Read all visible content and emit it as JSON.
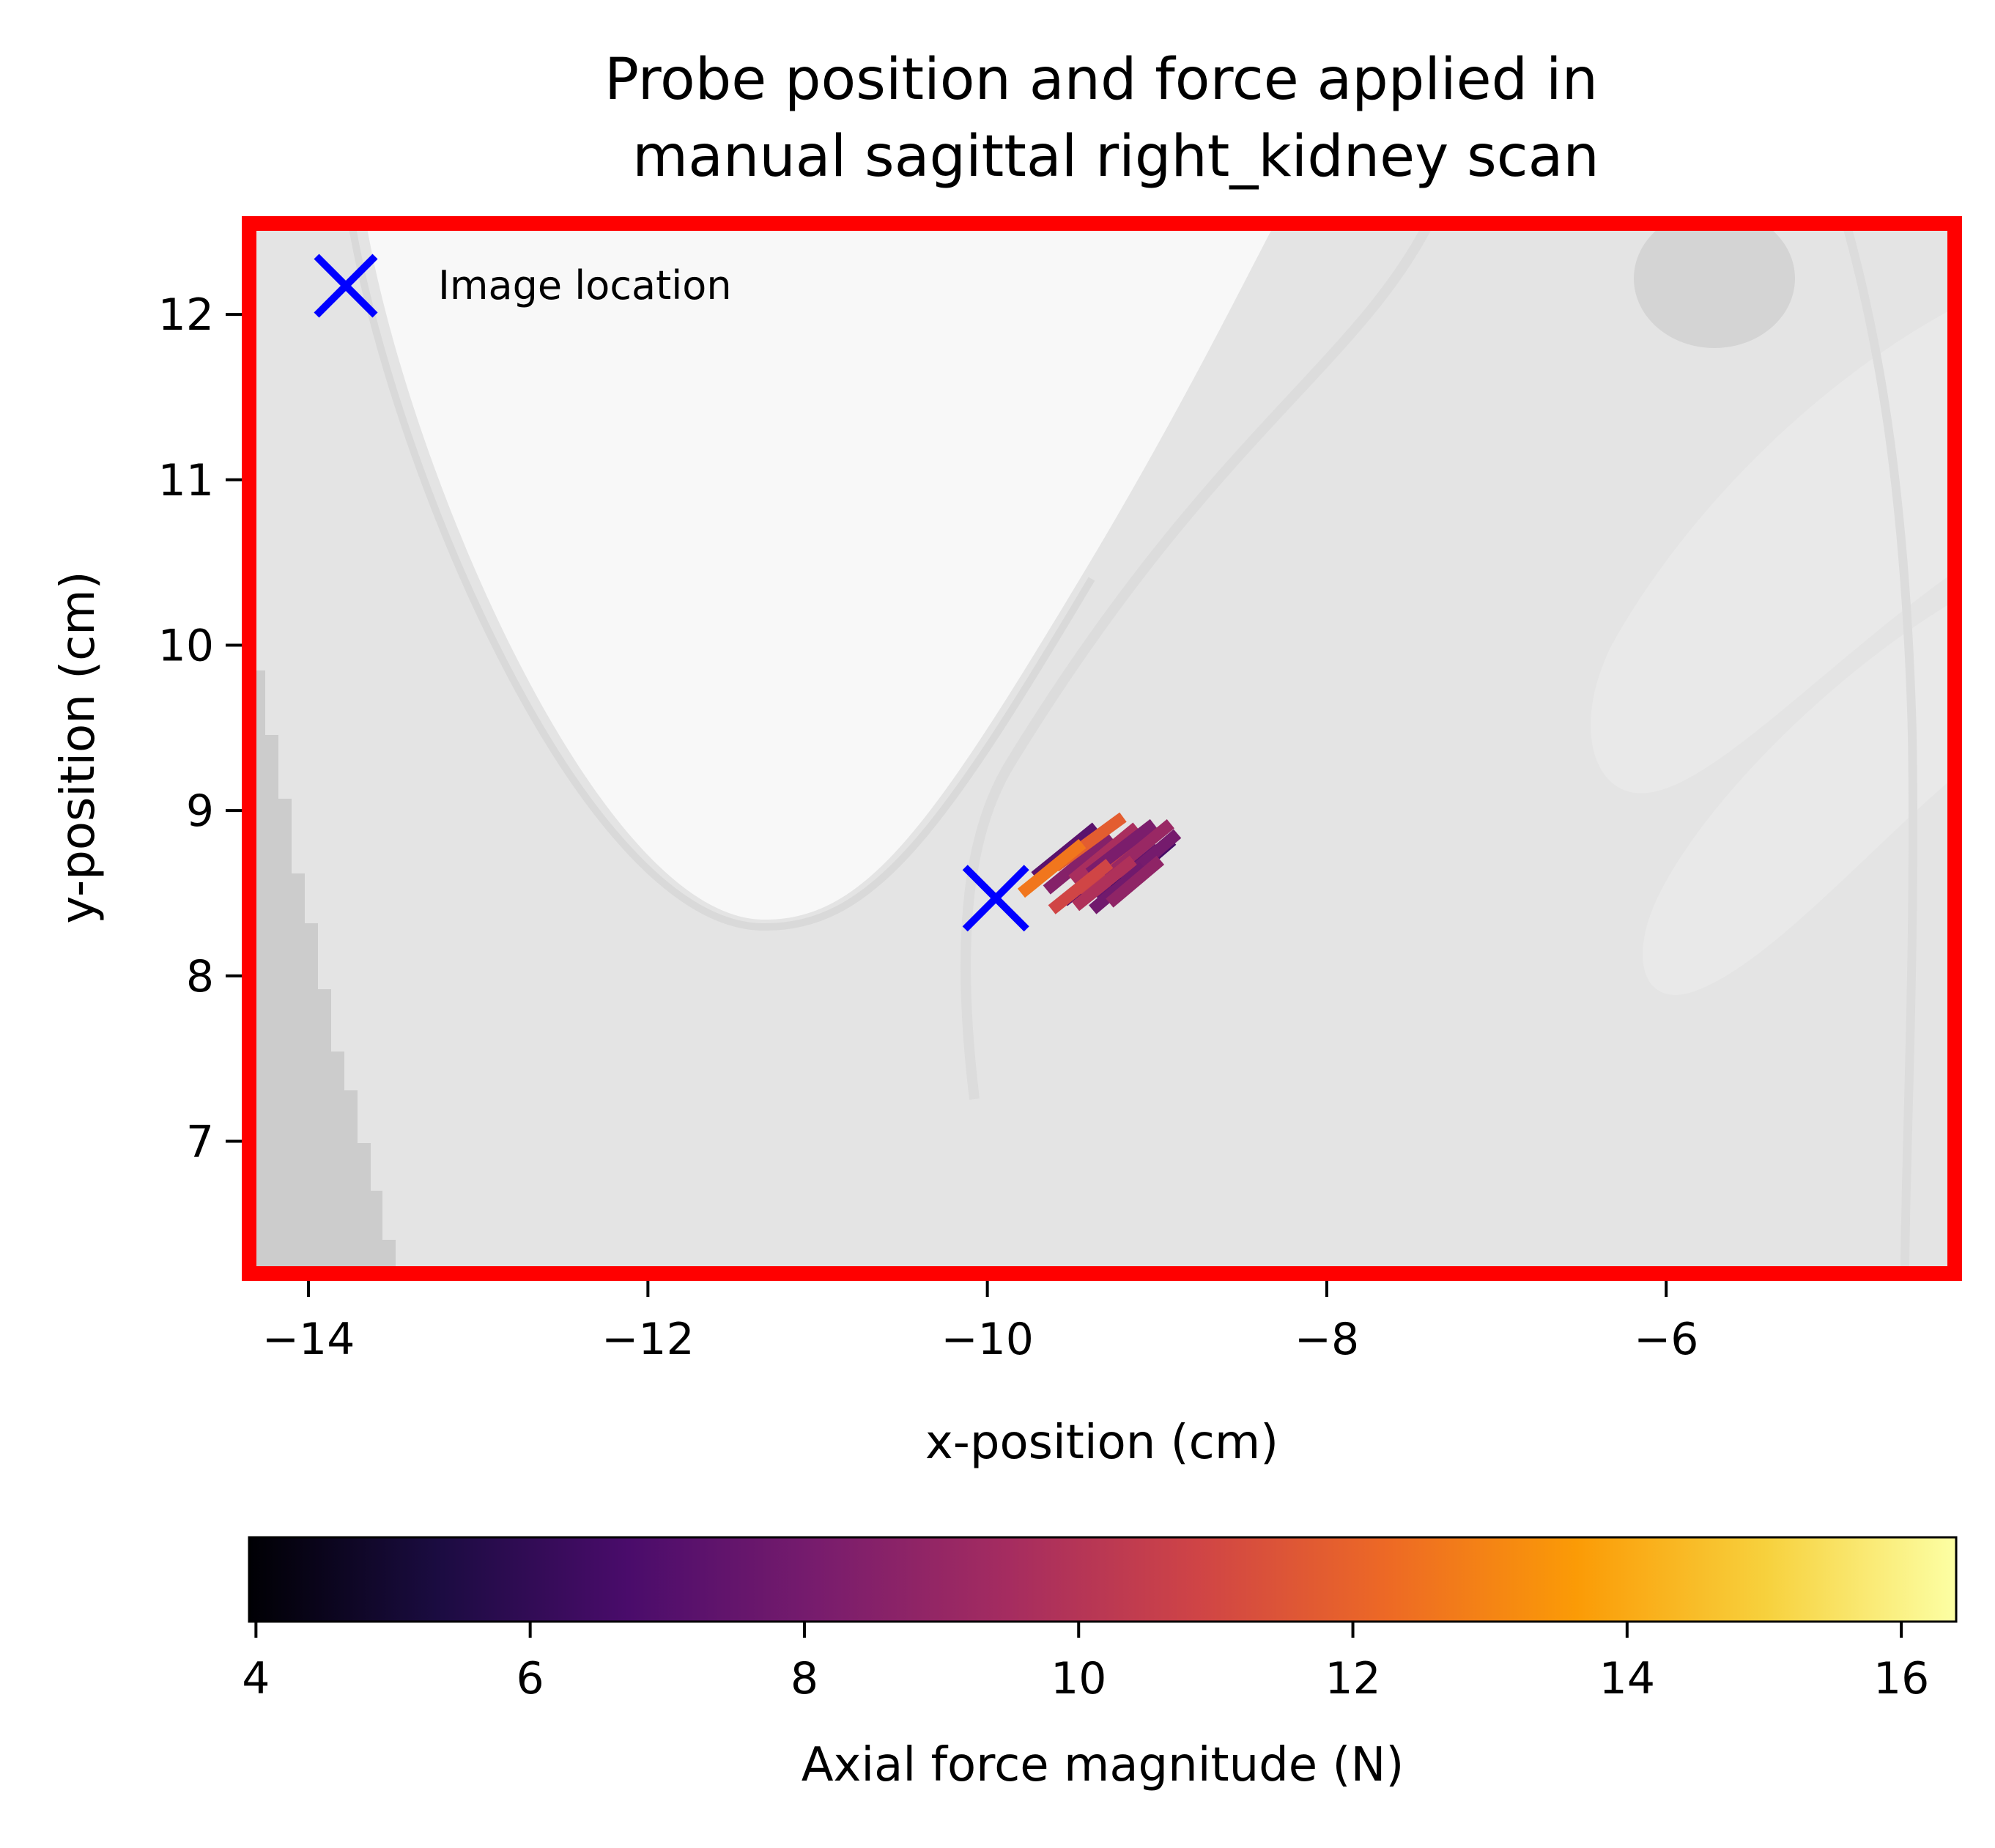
{
  "chart_data": {
    "type": "scatter",
    "title_lines": [
      "Probe position and force applied in",
      "manual sagittal right_kidney scan"
    ],
    "xlabel": "x-position (cm)",
    "ylabel": "y-position (cm)",
    "xlim": [
      -14.35,
      -4.3
    ],
    "ylim": [
      6.2,
      12.55
    ],
    "x_ticks": [
      -14,
      -12,
      -10,
      -8,
      -6
    ],
    "x_tick_labels": [
      "−14",
      "−12",
      "−10",
      "−8",
      "−6"
    ],
    "y_ticks": [
      7,
      8,
      9,
      10,
      11,
      12
    ],
    "y_tick_labels": [
      "7",
      "8",
      "9",
      "10",
      "11",
      "12"
    ],
    "grid": false,
    "frame_color": "#ff0000",
    "legend": {
      "placement": "top-left",
      "label": "Image location",
      "marker": "x",
      "color": "#0000ff"
    },
    "image_location": {
      "x": -9.95,
      "y": 8.47
    },
    "colorbar": {
      "label": "Axial force magnitude (N)",
      "range": [
        3.95,
        16.4
      ],
      "ticks": [
        4,
        6,
        8,
        10,
        12,
        14,
        16
      ],
      "tick_labels": [
        "4",
        "6",
        "8",
        "10",
        "12",
        "14",
        "16"
      ],
      "colormap": "inferno",
      "stops": [
        "#000004",
        "#1b0c41",
        "#4a0c6b",
        "#781c6d",
        "#a52c60",
        "#cf4446",
        "#ed6925",
        "#fb9b06",
        "#f7d13d",
        "#fcffa4"
      ]
    },
    "force_segments": [
      {
        "x": -9.72,
        "y": 8.6,
        "dx": 0.36,
        "dy": 0.3,
        "f": 7.2
      },
      {
        "x": -9.65,
        "y": 8.52,
        "dx": 0.38,
        "dy": 0.32,
        "f": 8.5
      },
      {
        "x": -9.6,
        "y": 8.66,
        "dx": 0.4,
        "dy": 0.3,
        "f": 11.8
      },
      {
        "x": -9.55,
        "y": 8.45,
        "dx": 0.36,
        "dy": 0.3,
        "f": 6.8
      },
      {
        "x": -9.5,
        "y": 8.58,
        "dx": 0.38,
        "dy": 0.32,
        "f": 9.6
      },
      {
        "x": -9.45,
        "y": 8.5,
        "dx": 0.36,
        "dy": 0.3,
        "f": 10.5
      },
      {
        "x": -9.4,
        "y": 8.62,
        "dx": 0.38,
        "dy": 0.3,
        "f": 8.2
      },
      {
        "x": -9.35,
        "y": 8.47,
        "dx": 0.36,
        "dy": 0.3,
        "f": 7.5
      },
      {
        "x": -9.3,
        "y": 8.6,
        "dx": 0.38,
        "dy": 0.32,
        "f": 9.1
      },
      {
        "x": -9.25,
        "y": 8.52,
        "dx": 0.34,
        "dy": 0.3,
        "f": 6.6
      },
      {
        "x": -9.2,
        "y": 8.58,
        "dx": 0.32,
        "dy": 0.28,
        "f": 8.0
      },
      {
        "x": -9.62,
        "y": 8.4,
        "dx": 0.34,
        "dy": 0.28,
        "f": 10.9
      },
      {
        "x": -9.48,
        "y": 8.42,
        "dx": 0.34,
        "dy": 0.28,
        "f": 9.8
      },
      {
        "x": -9.8,
        "y": 8.5,
        "dx": 0.36,
        "dy": 0.3,
        "f": 12.6
      },
      {
        "x": -9.38,
        "y": 8.4,
        "dx": 0.3,
        "dy": 0.26,
        "f": 7.9
      },
      {
        "x": -9.28,
        "y": 8.44,
        "dx": 0.3,
        "dy": 0.26,
        "f": 8.8
      }
    ]
  }
}
